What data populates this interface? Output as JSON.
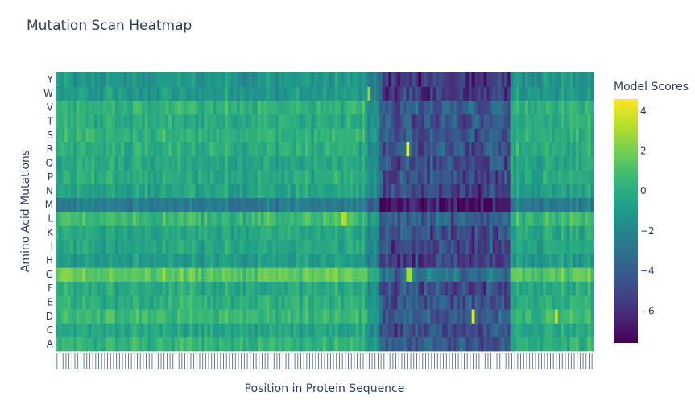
{
  "chart_data": {
    "type": "heatmap",
    "title": "Mutation Scan Heatmap",
    "xlabel": "Position in Protein Sequence",
    "ylabel": "Amino Acid Mutations",
    "colorbar_title": "Model Scores",
    "colorscale": "Viridis",
    "zrange": [
      -7.6,
      4.6
    ],
    "colorbar_ticks": [
      "4",
      "2",
      "0",
      "−2",
      "−4",
      "−6"
    ],
    "colorbar_tick_values": [
      4,
      2,
      0,
      -2,
      -4,
      -6
    ],
    "y_categories": [
      "A",
      "C",
      "D",
      "E",
      "F",
      "G",
      "H",
      "I",
      "K",
      "L",
      "M",
      "N",
      "P",
      "Q",
      "R",
      "S",
      "T",
      "V",
      "W",
      "Y"
    ],
    "n_positions": 181,
    "row_baseline": {
      "Y": -1.2,
      "W": -1.0,
      "V": 0.3,
      "T": 0.0,
      "S": 0.2,
      "R": 0.0,
      "Q": -0.3,
      "P": -0.2,
      "N": -0.6,
      "M": -2.6,
      "L": 0.6,
      "K": -0.3,
      "I": -0.4,
      "H": -0.9,
      "G": 1.5,
      "F": -0.2,
      "E": 0.1,
      "D": 0.6,
      "C": -0.4,
      "A": 0.3
    },
    "depleted_region": {
      "start_fraction": 0.6,
      "end_fraction": 0.84,
      "mean_shift": -4.5
    },
    "highlights": [
      {
        "row": "R",
        "position_fraction": 0.652,
        "value": 4.5
      },
      {
        "row": "D",
        "position_fraction": 0.775,
        "value": 4.2
      },
      {
        "row": "D",
        "position_fraction": 0.928,
        "value": 3.6
      },
      {
        "row": "G",
        "position_fraction": 0.655,
        "value": 3.0
      },
      {
        "row": "L",
        "position_fraction": 0.533,
        "value": 3.2
      },
      {
        "row": "W",
        "position_fraction": 0.582,
        "value": 2.6
      }
    ]
  }
}
